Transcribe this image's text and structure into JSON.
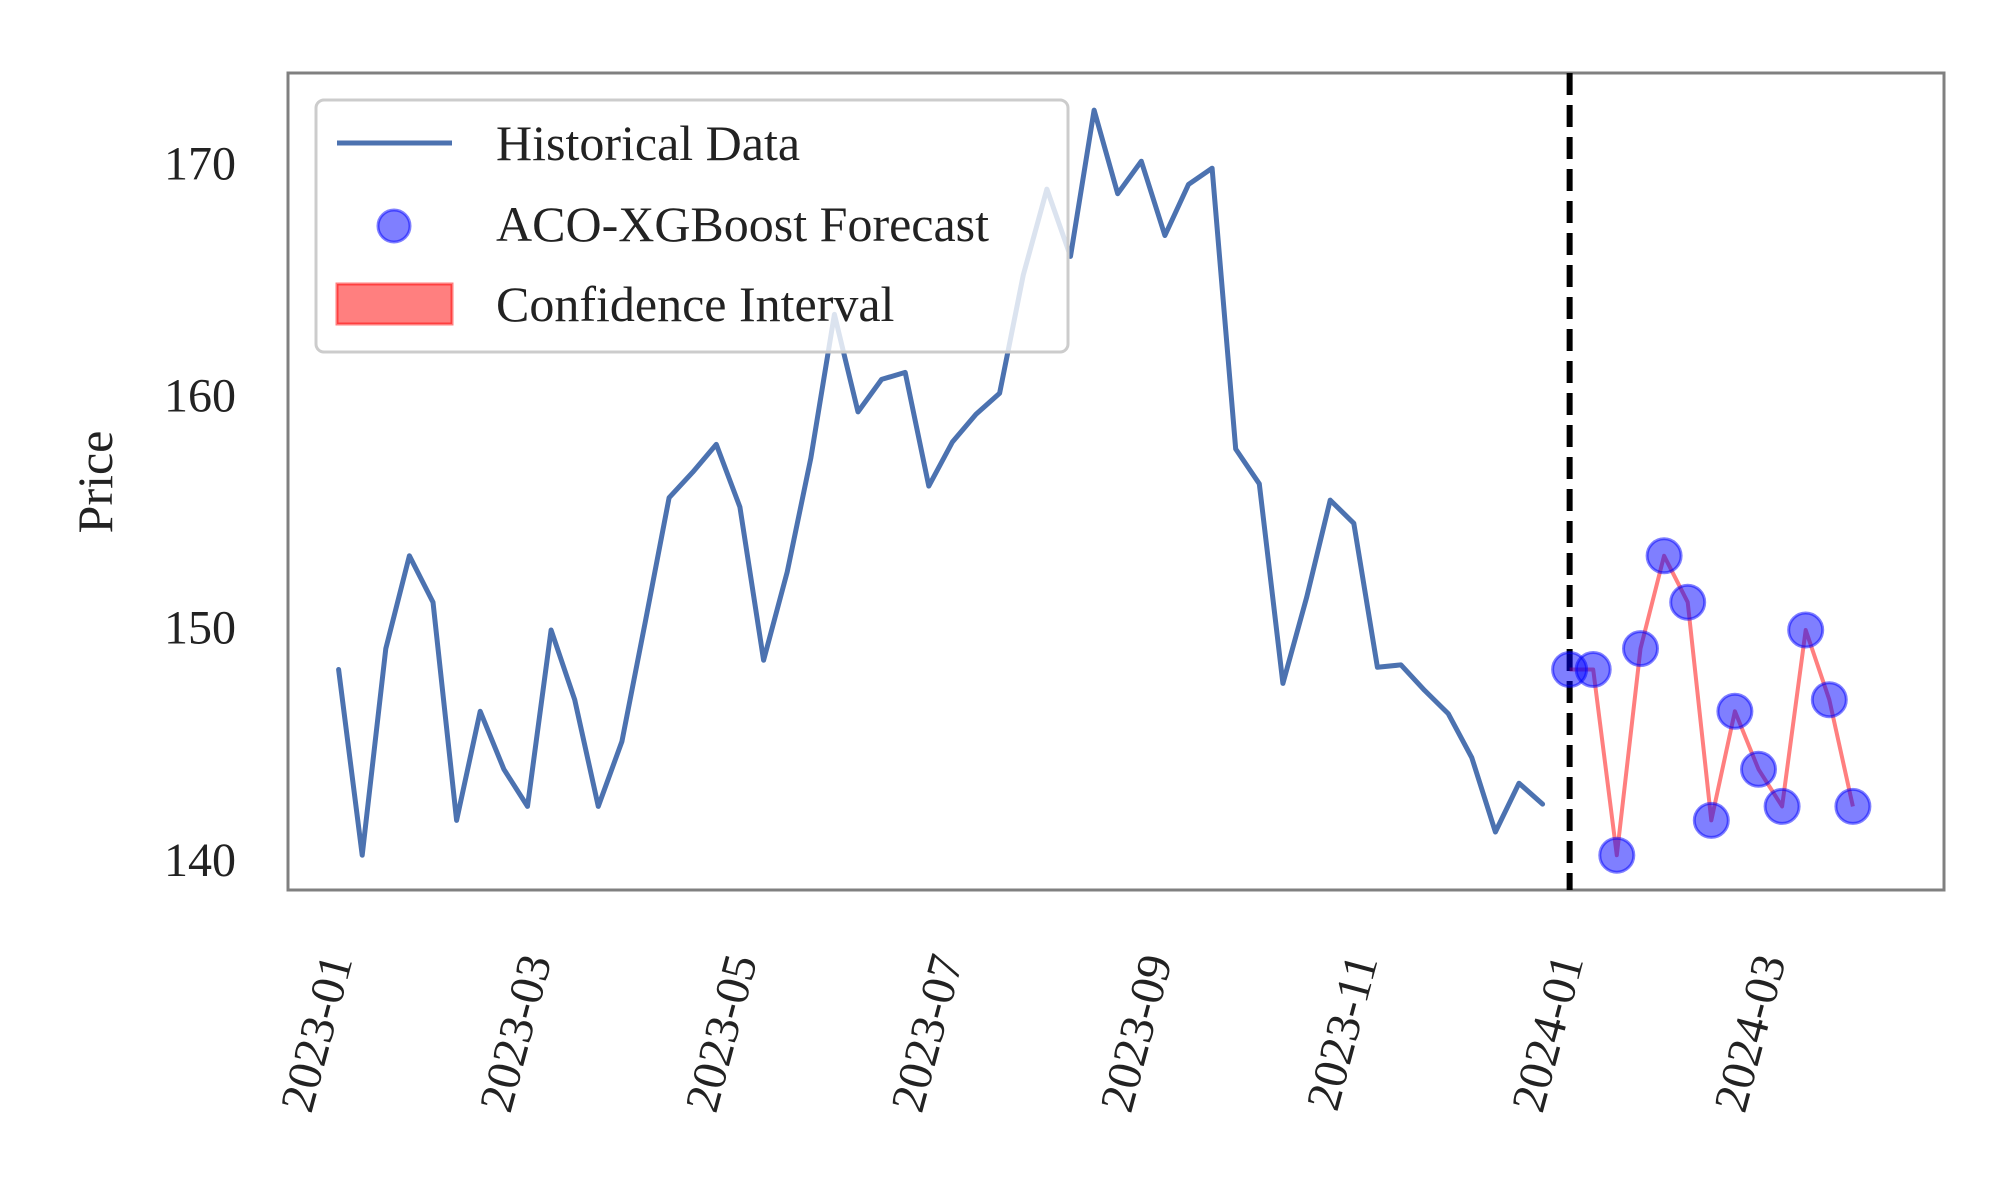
{
  "chart_data": {
    "type": "line",
    "ylabel": "Price",
    "ylim": [
      138.7,
      173.9
    ],
    "xlim": [
      "2022-12-17",
      "2024-04-21"
    ],
    "y_ticks": [
      140,
      150,
      160,
      170
    ],
    "x_ticks": [
      {
        "date": "2023-01-01",
        "label": "2023-01"
      },
      {
        "date": "2023-03-01",
        "label": "2023-03"
      },
      {
        "date": "2023-05-01",
        "label": "2023-05"
      },
      {
        "date": "2023-07-01",
        "label": "2023-07"
      },
      {
        "date": "2023-09-01",
        "label": "2023-09"
      },
      {
        "date": "2023-11-01",
        "label": "2023-11"
      },
      {
        "date": "2024-01-01",
        "label": "2024-01"
      },
      {
        "date": "2024-03-01",
        "label": "2024-03"
      }
    ],
    "forecast_start": "2024-01-01",
    "legend": {
      "position": "top-left",
      "entries": [
        "Historical Data",
        "ACO-XGBoost Forecast",
        "Confidence Interval"
      ]
    },
    "colors": {
      "historical": "#4c72b0",
      "forecast_marker": "#0000ff",
      "interval": "#ff0000",
      "divider": "#000000",
      "frame": "#808080"
    },
    "series": [
      {
        "name": "Historical Data",
        "x": [
          "2023-01-01",
          "2023-01-08",
          "2023-01-15",
          "2023-01-22",
          "2023-01-29",
          "2023-02-05",
          "2023-02-12",
          "2023-02-19",
          "2023-02-26",
          "2023-03-05",
          "2023-03-12",
          "2023-03-19",
          "2023-03-26",
          "2023-04-02",
          "2023-04-09",
          "2023-04-16",
          "2023-04-23",
          "2023-04-30",
          "2023-05-07",
          "2023-05-14",
          "2023-05-21",
          "2023-05-28",
          "2023-06-04",
          "2023-06-11",
          "2023-06-18",
          "2023-06-25",
          "2023-07-02",
          "2023-07-09",
          "2023-07-16",
          "2023-07-23",
          "2023-07-30",
          "2023-08-06",
          "2023-08-13",
          "2023-08-20",
          "2023-08-27",
          "2023-09-03",
          "2023-09-10",
          "2023-09-17",
          "2023-09-24",
          "2023-10-01",
          "2023-10-08",
          "2023-10-15",
          "2023-10-22",
          "2023-10-29",
          "2023-11-05",
          "2023-11-12",
          "2023-11-19",
          "2023-11-26",
          "2023-12-03",
          "2023-12-10",
          "2023-12-17",
          "2023-12-24"
        ],
        "values": [
          148.2,
          140.2,
          149.1,
          153.1,
          151.1,
          141.7,
          146.4,
          143.9,
          142.3,
          149.9,
          146.9,
          142.3,
          145.1,
          150.3,
          155.6,
          156.7,
          157.9,
          155.2,
          148.6,
          152.4,
          157.3,
          163.5,
          159.3,
          160.7,
          161.0,
          156.1,
          158.0,
          159.2,
          160.1,
          165.2,
          168.9,
          166.0,
          172.3,
          168.7,
          170.1,
          166.9,
          169.1,
          169.8,
          157.7,
          156.2,
          147.6,
          151.3,
          155.5,
          154.5,
          148.3,
          148.4,
          147.3,
          146.3,
          144.4,
          141.2,
          143.3,
          142.4
        ]
      },
      {
        "name": "ACO-XGBoost Forecast",
        "x": [
          "2024-01-01",
          "2024-01-08",
          "2024-01-15",
          "2024-01-22",
          "2024-01-29",
          "2024-02-05",
          "2024-02-12",
          "2024-02-19",
          "2024-02-26",
          "2024-03-04",
          "2024-03-11",
          "2024-03-18",
          "2024-03-25",
          "2024-04-01"
        ],
        "values": [
          148.2,
          148.2,
          140.2,
          149.1,
          153.1,
          151.1,
          141.7,
          146.4,
          143.9,
          142.3,
          149.9,
          146.9,
          142.3,
          null
        ]
      }
    ]
  }
}
